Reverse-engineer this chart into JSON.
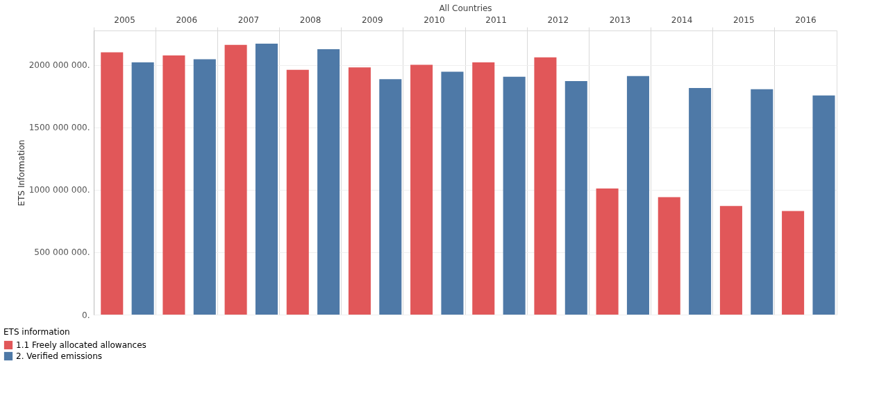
{
  "chart_data": {
    "type": "bar",
    "xlabel": "All Countries",
    "ylabel": "ETS Information",
    "legend_title": "ETS information",
    "categories": [
      "2005",
      "2006",
      "2007",
      "2008",
      "2009",
      "2010",
      "2011",
      "2012",
      "2013",
      "2014",
      "2015",
      "2016"
    ],
    "series": [
      {
        "name": "1.1 Freely allocated allowances",
        "color": "#e15759",
        "values": [
          2100000000,
          2075000000,
          2160000000,
          1960000000,
          1980000000,
          2000000000,
          2020000000,
          2060000000,
          1010000000,
          940000000,
          870000000,
          830000000
        ]
      },
      {
        "name": "2. Verified emissions",
        "color": "#4e79a7",
        "values": [
          2020000000,
          2045000000,
          2170000000,
          2125000000,
          1885000000,
          1945000000,
          1905000000,
          1870000000,
          1910000000,
          1815000000,
          1805000000,
          1755000000
        ]
      }
    ],
    "ylim": [
      0,
      2275000000
    ],
    "yticks": [
      {
        "value": 0,
        "label": "0."
      },
      {
        "value": 500000000,
        "label": "500 000 000."
      },
      {
        "value": 1000000000,
        "label": "1000 000 000."
      },
      {
        "value": 1500000000,
        "label": "1500 000 000."
      },
      {
        "value": 2000000000,
        "label": "2000 000 000."
      }
    ],
    "grid": "y",
    "legend": "bottom left"
  }
}
